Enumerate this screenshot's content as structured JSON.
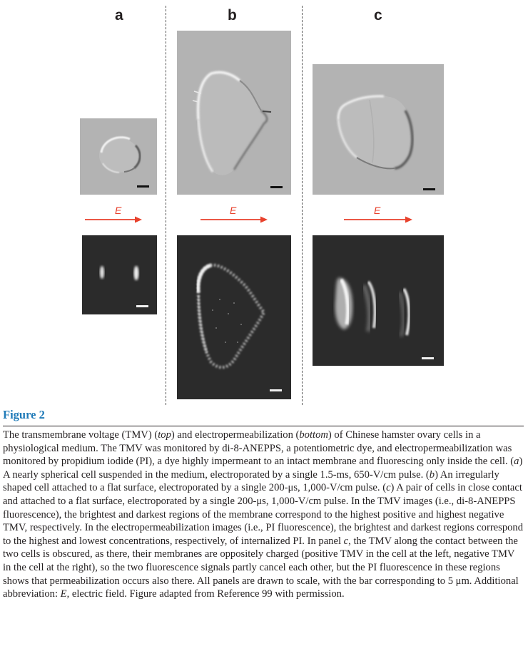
{
  "panels": [
    {
      "label": "a",
      "efield": "E"
    },
    {
      "label": "b",
      "efield": "E"
    },
    {
      "label": "c",
      "efield": "E"
    }
  ],
  "figure": {
    "title": "Figure 2",
    "caption": {
      "s1": "The transmembrane voltage (TMV) (",
      "s1_top": "top",
      "s2": ") and electropermeabilization (",
      "s2_bottom": "bottom",
      "s3": ") of Chinese hamster ovary cells in a physiological medium. The TMV was monitored by di-8-ANEPPS, a potentiometric dye, and electropermeabilization was monitored by propidium iodide (PI), a dye highly impermeant to an intact membrane and fluorescing only inside the cell. (",
      "s3_a": "a",
      "s4": ") A nearly spherical cell suspended in the medium, electroporated by a single 1.5-ms, 650-V/cm pulse. (",
      "s4_b": "b",
      "s5": ") An irregularly shaped cell attached to a flat surface, electroporated by a single 200-μs, 1,000-V/cm pulse. (",
      "s5_c": "c",
      "s6": ") A pair of cells in close contact and attached to a flat surface, electroporated by a single 200-μs, 1,000-V/cm pulse. In the TMV images (i.e., di-8-ANEPPS fluorescence), the brightest and darkest regions of the membrane correspond to the highest positive and highest negative TMV, respectively. In the electropermeabilization images (i.e., PI fluorescence), the brightest and darkest regions correspond to the highest and lowest concentrations, respectively, of internalized PI. In panel ",
      "s6_c": "c",
      "s7": ", the TMV along the contact between the two cells is obscured, as there, their membranes are oppositely charged (positive TMV in the cell at the left, negative TMV in the cell at the right), so the two fluorescence signals partly cancel each other, but the PI fluorescence in these regions shows that permeabilization occurs also there. All panels are drawn to scale, with the bar corresponding to 5 μm. Additional abbreviation: ",
      "s7_e": "E",
      "s8": ", electric field. Figure adapted from Reference 99 with permission."
    }
  },
  "colors": {
    "arrow": "#e8412c",
    "title": "#1f7ab8",
    "tmv_background": "#b3b3b3",
    "pi_background": "#2b2b2b"
  }
}
